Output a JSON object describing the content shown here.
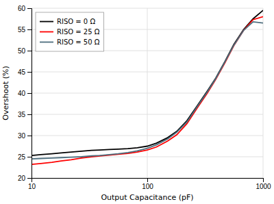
{
  "chart_data": {
    "type": "line",
    "xlabel": "Output Capacitance (pF)",
    "ylabel": "Overshoot (%)",
    "log": "x",
    "grid": true,
    "legend": "upper-left",
    "xlim": [
      10,
      1000
    ],
    "xticks": [
      10,
      100,
      1000
    ],
    "ylim": [
      20,
      60
    ],
    "yticks": [
      20,
      25,
      30,
      35,
      40,
      45,
      50,
      55,
      60
    ],
    "x": [
      10,
      12,
      15,
      18,
      22,
      27,
      33,
      39,
      47,
      56,
      68,
      82,
      100,
      120,
      150,
      180,
      220,
      270,
      330,
      390,
      470,
      560,
      680,
      820,
      1000
    ],
    "series": [
      {
        "name": "RISO = 0 Ω",
        "color": "#000000",
        "values": [
          25.3,
          25.5,
          25.7,
          25.9,
          26.1,
          26.3,
          26.5,
          26.6,
          26.7,
          26.8,
          26.9,
          27.1,
          27.5,
          28.2,
          29.5,
          31.0,
          33.5,
          37.0,
          40.5,
          43.5,
          47.5,
          51.5,
          55.0,
          57.5,
          59.5
        ]
      },
      {
        "name": "RISO = 25 Ω",
        "color": "#ff0000",
        "values": [
          23.2,
          23.4,
          23.7,
          24.0,
          24.3,
          24.7,
          25.0,
          25.2,
          25.4,
          25.6,
          25.8,
          26.1,
          26.6,
          27.3,
          28.7,
          30.2,
          32.8,
          36.5,
          40.0,
          43.2,
          47.2,
          51.2,
          54.8,
          57.3,
          58.0
        ]
      },
      {
        "name": "RISO = 50 Ω",
        "color": "#4d6e7e",
        "values": [
          24.5,
          24.6,
          24.7,
          24.8,
          24.9,
          25.0,
          25.2,
          25.3,
          25.5,
          25.7,
          26.0,
          26.4,
          27.0,
          27.8,
          29.2,
          30.8,
          33.2,
          36.8,
          40.3,
          43.4,
          47.4,
          51.3,
          54.8,
          56.8,
          56.5
        ]
      }
    ]
  }
}
